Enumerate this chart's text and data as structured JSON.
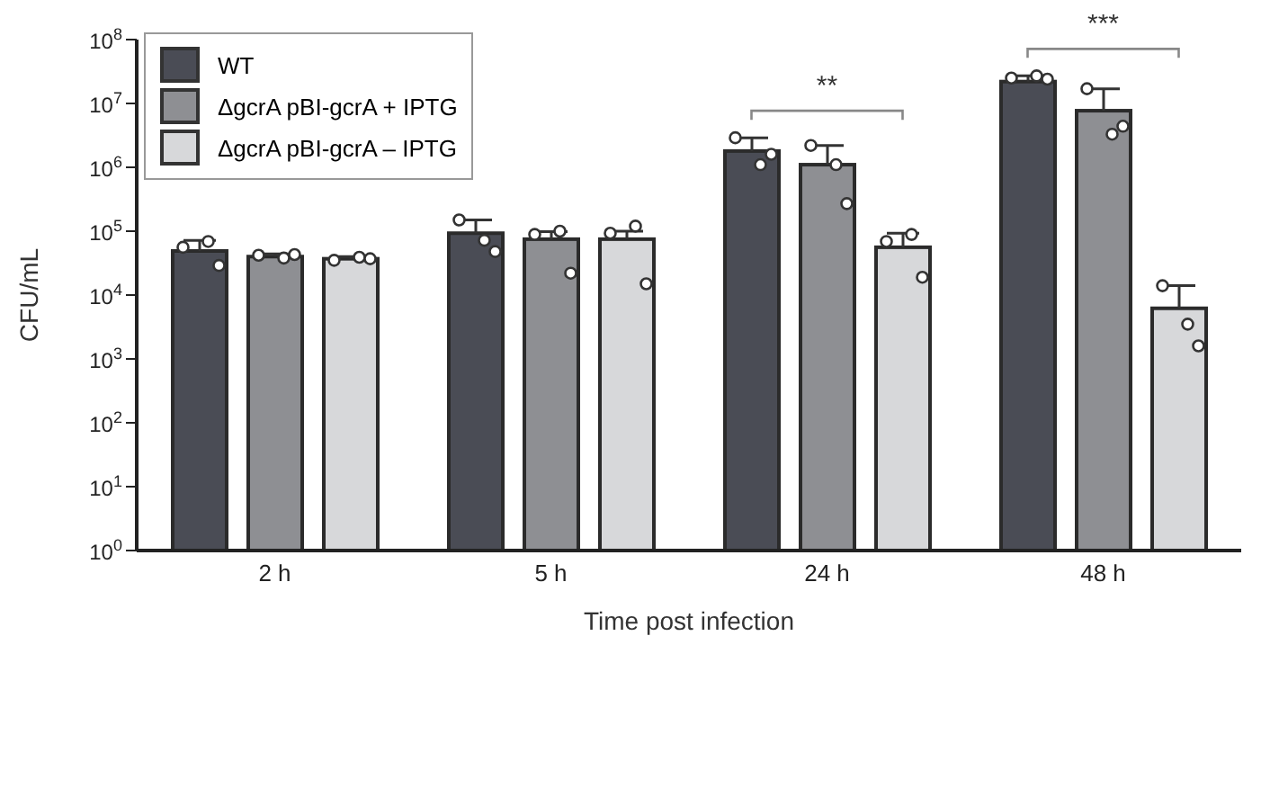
{
  "chart_data": {
    "type": "bar",
    "xlabel": "Time post infection",
    "ylabel": "CFU/mL",
    "categories": [
      "2 h",
      "5 h",
      "24 h",
      "48 h"
    ],
    "log": "y",
    "ylim": [
      1,
      100000000
    ],
    "yticks": [
      {
        "value": 1,
        "label": "10$^{0}$"
      },
      {
        "value": 10,
        "label": "10$^{1}$"
      },
      {
        "value": 100,
        "label": "10$^{2}$"
      },
      {
        "value": 1000,
        "label": "10$^{3}$"
      },
      {
        "value": 10000,
        "label": "10$^{4}$"
      },
      {
        "value": 100000,
        "label": "10$^{5}$"
      },
      {
        "value": 1000000,
        "label": "10$^{6}$"
      },
      {
        "value": 10000000,
        "label": "10$^{7}$"
      },
      {
        "value": 100000000,
        "label": "10$^{8}$"
      }
    ],
    "grid": false,
    "legend": "top left",
    "series": [
      {
        "name": "WT",
        "color": "#4a4c55",
        "values": [
          49000,
          93000,
          1800000,
          22000000
        ],
        "errors": [
          [
            49000,
            72000
          ],
          [
            93000,
            150000
          ],
          [
            1800000,
            2900000
          ],
          [
            22000000,
            27000000
          ]
        ]
      },
      {
        "name": "ΔgcrA pBI-gcrA + IPTG",
        "color": "#8e8f93",
        "values": [
          40000,
          75000,
          1100000,
          7700000
        ],
        "errors": [
          [
            40000,
            44000
          ],
          [
            75000,
            98000
          ],
          [
            1100000,
            2200000
          ],
          [
            7700000,
            17000000
          ]
        ]
      },
      {
        "name": "ΔgcrA pBI-gcrA – IPTG",
        "color": "#d7d8da",
        "values": [
          37000,
          75000,
          56000,
          6200
        ],
        "errors": [
          [
            37000,
            40000
          ],
          [
            75000,
            100000
          ],
          [
            56000,
            93000
          ],
          [
            6200,
            14000
          ]
        ]
      },
      {
        "type": "scatter",
        "color": "#ffffff",
        "marker": "circle",
        "x": [
          "2 h",
          "2 h",
          "2 h",
          "5 h",
          "5 h",
          "5 h",
          "24 h",
          "24 h",
          "24 h",
          "48 h",
          "48 h",
          "48 h"
        ],
        "values": [
          56000,
          69000,
          29000,
          150000,
          72000,
          48000,
          2900000,
          1100000,
          1600000,
          25000000,
          27000000,
          24000000
        ]
      },
      {
        "type": "scatter",
        "color": "#ffffff",
        "marker": "circle",
        "x": [
          "2 h",
          "2 h",
          "2 h",
          "5 h",
          "5 h",
          "5 h",
          "24 h",
          "24 h",
          "24 h",
          "48 h",
          "48 h",
          "48 h"
        ],
        "values": [
          42000,
          38000,
          43000,
          89000,
          100000,
          22000,
          2200000,
          1100000,
          270000,
          17000000,
          3300000,
          4400000
        ]
      },
      {
        "type": "scatter",
        "color": "#ffffff",
        "marker": "circle",
        "x": [
          "2 h",
          "2 h",
          "2 h",
          "5 h",
          "5 h",
          "5 h",
          "24 h",
          "24 h",
          "24 h",
          "48 h",
          "48 h",
          "48 h"
        ],
        "values": [
          35000,
          39000,
          37000,
          93000,
          120000,
          15000,
          69000,
          89000,
          19000,
          14000,
          3500,
          1600
        ]
      }
    ],
    "annotations": [
      "**",
      "***"
    ]
  }
}
